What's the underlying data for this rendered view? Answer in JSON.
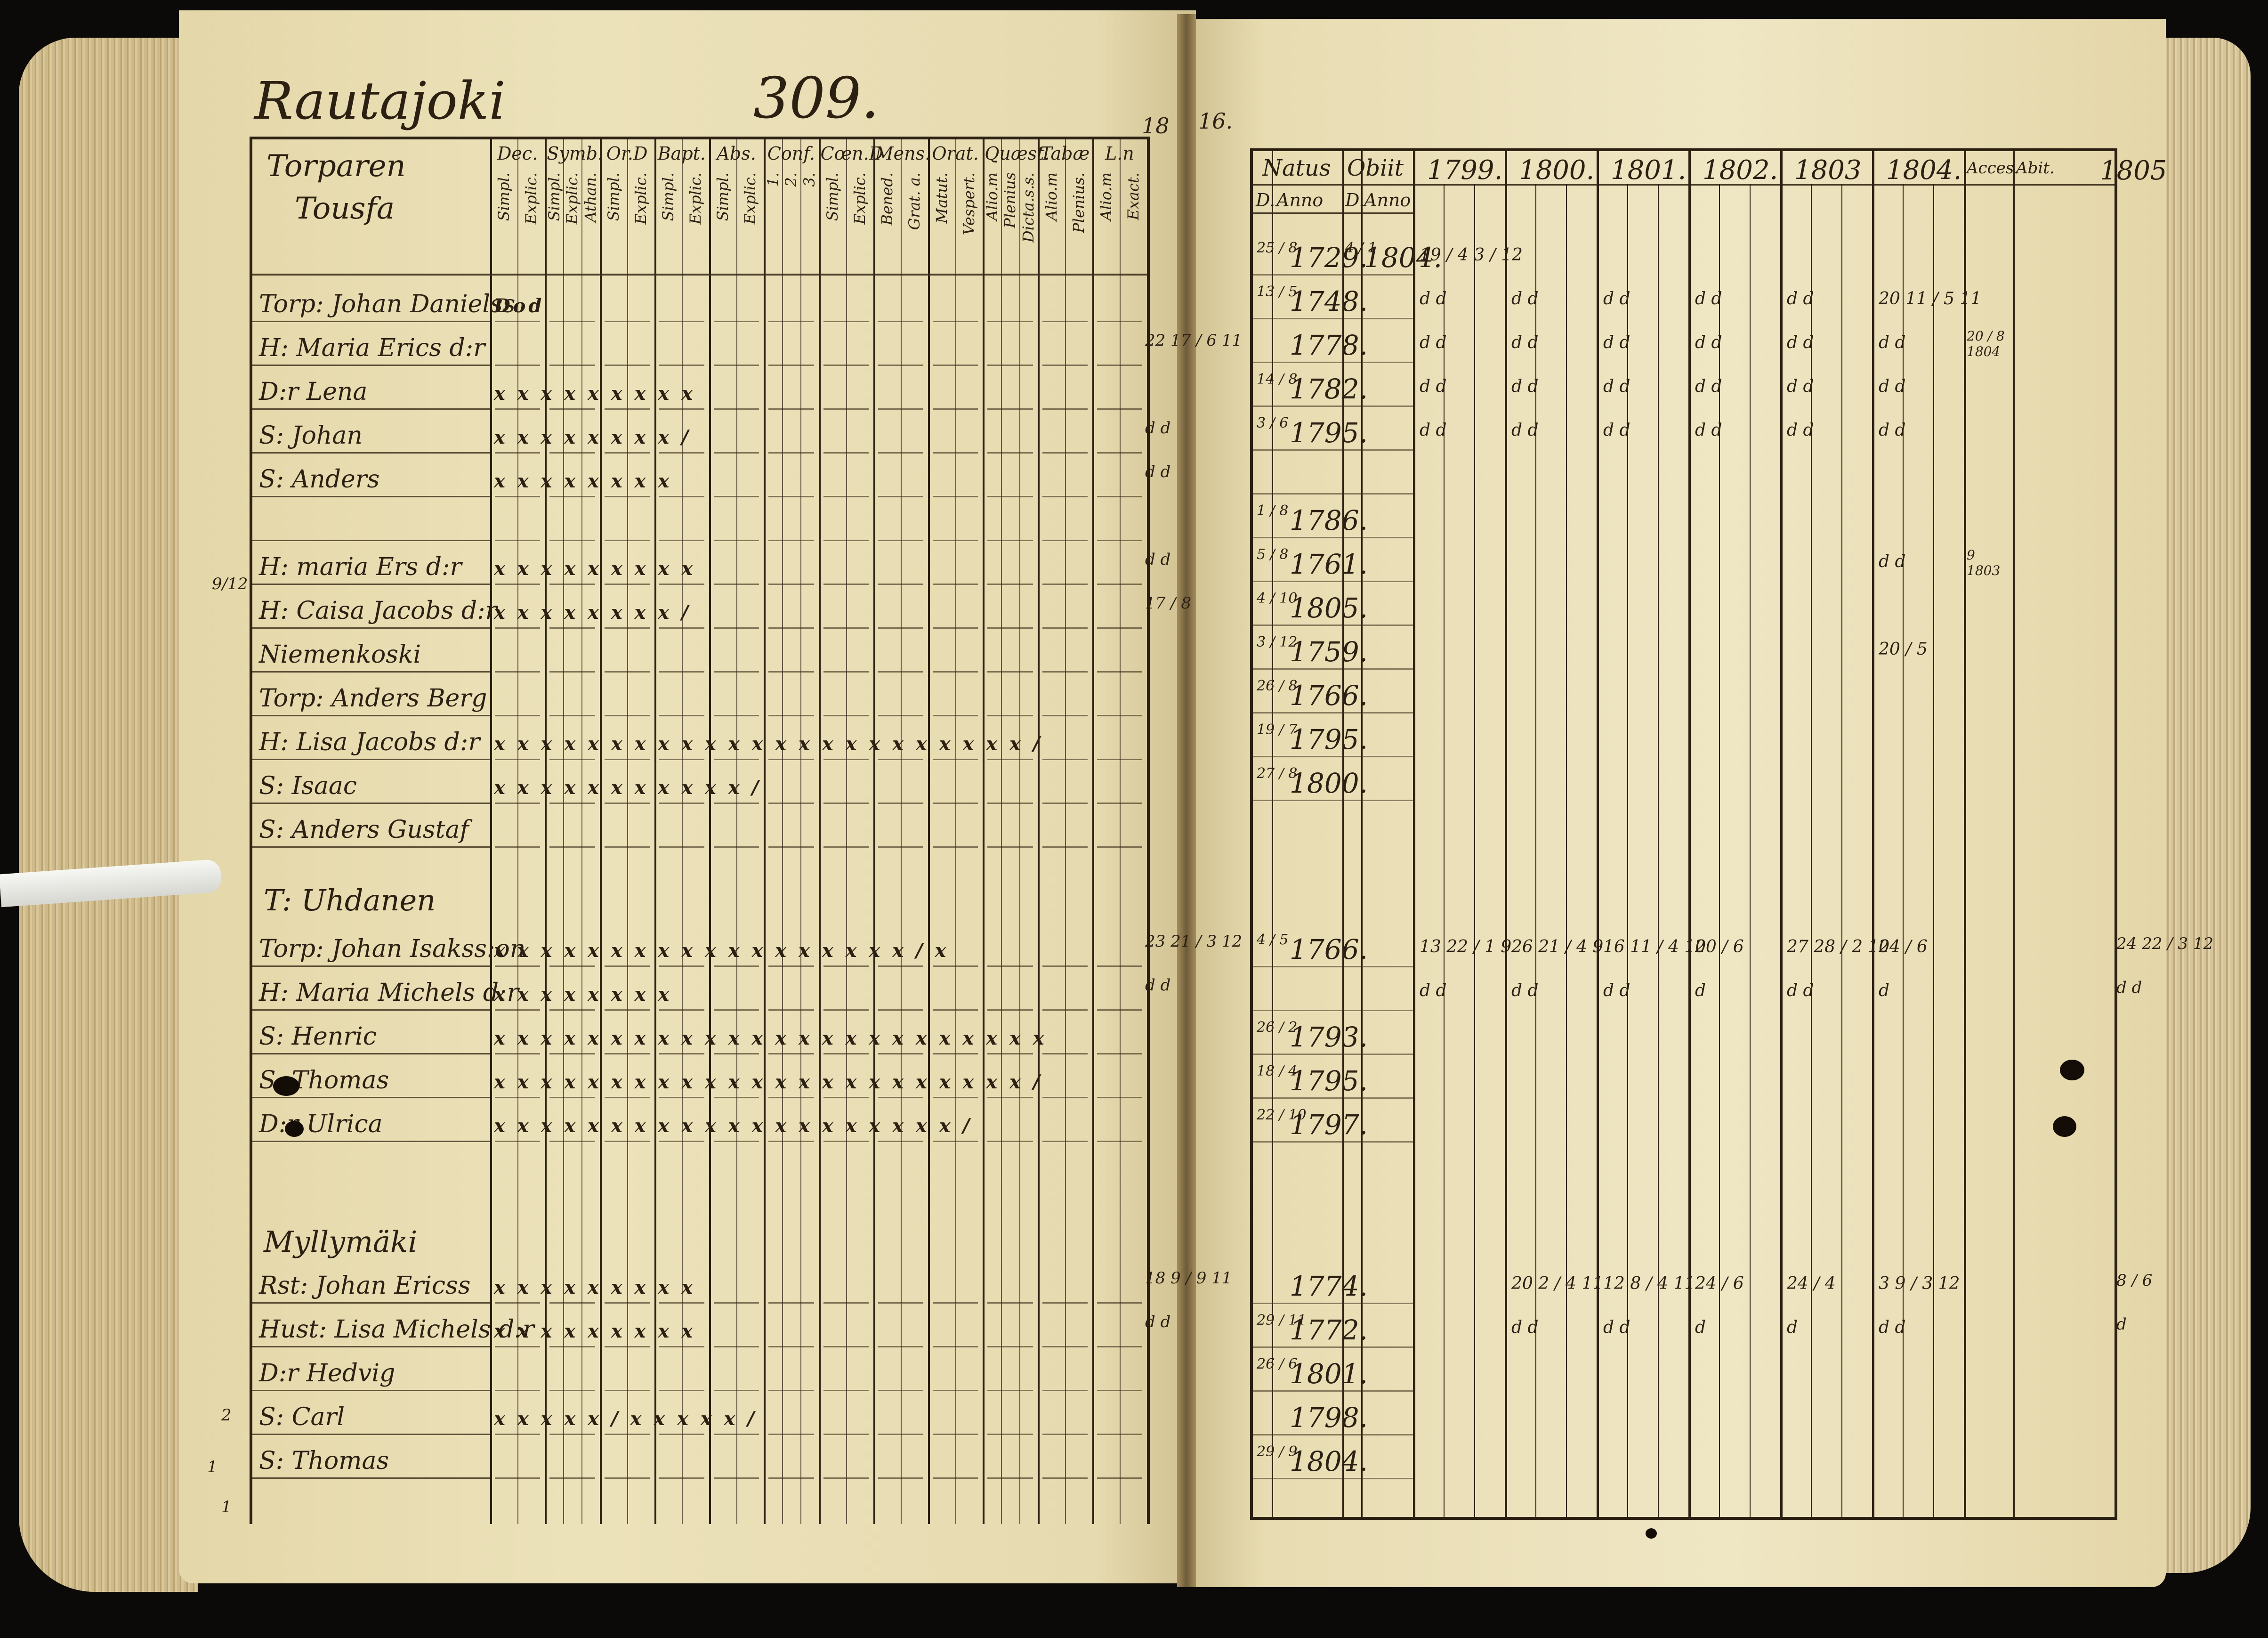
{
  "left_page": {
    "place_name": "Rautajoki",
    "page_number": "309.",
    "corner_mark": "18",
    "heading": [
      "Torparen",
      "Tousfa"
    ],
    "columns": [
      {
        "label": "Dec.",
        "subs": [
          "Simpl.",
          "Explic."
        ]
      },
      {
        "label": "Symb.",
        "subs": [
          "Simpl.",
          "Explic.",
          "Athan."
        ]
      },
      {
        "label": "Or.D",
        "subs": [
          "Simpl.",
          "Explic."
        ]
      },
      {
        "label": "Bapt.",
        "subs": [
          "Simpl.",
          "Explic."
        ]
      },
      {
        "label": "Abs.",
        "subs": [
          "Simpl.",
          "Explic."
        ]
      },
      {
        "label": "Conf.",
        "subs": [
          "1.",
          "2.",
          "3."
        ]
      },
      {
        "label": "Cœn.D",
        "subs": [
          "Simpl.",
          "Explic."
        ]
      },
      {
        "label": "Mens.",
        "subs": [
          "Bened.",
          "Grat. a."
        ]
      },
      {
        "label": "Orat.",
        "subs": [
          "Matut.",
          "Vespert."
        ]
      },
      {
        "label": "Quæst.",
        "subs": [
          "Alio.m",
          "Plenius",
          "Dicta.s.s."
        ]
      },
      {
        "label": "Tabæ",
        "subs": [
          "Alio.m",
          "Plenius."
        ]
      },
      {
        "label": "L.n",
        "subs": [
          "Alio.m",
          "Exact."
        ]
      }
    ],
    "rows": [
      {
        "name": "Torp: Johan Danielss",
        "marks": "Dod",
        "note": ""
      },
      {
        "name": "H: Maria Erics d:r",
        "marks": "",
        "note": "22 17 / 6 11"
      },
      {
        "name": "D:r Lena",
        "marks": "x x x          x x   x x  x x",
        "note": ""
      },
      {
        "name": "S: Johan",
        "marks": "x x x          x x   x x  x /",
        "note": "d d"
      },
      {
        "name": "S: Anders",
        "marks": "x x x          x x   x x  x",
        "note": "d d"
      },
      {
        "name": "",
        "marks": "",
        "note": ""
      },
      {
        "name": "H: maria Ers d:r",
        "marks": "x x x          x x   x x  x x",
        "note": "d d"
      },
      {
        "name": "H: Caisa Jacobs d:r",
        "marks": "x x x          x x   x x  x /",
        "note": "17 / 8"
      },
      {
        "name": "Niemenkoski",
        "marks": "",
        "note": ""
      },
      {
        "name": "Torp: Anders Berg",
        "marks": "",
        "note": ""
      },
      {
        "name": "H: Lisa Jacobs d:r",
        "marks": "x x  x x x  x x  x x  x x  x x x  x x  x x  x x  x x  x /",
        "note": ""
      },
      {
        "name": "S: Isaac",
        "marks": "x  x  x  x  x  x  x  x x  x x  /",
        "note": ""
      },
      {
        "name": "S: Anders Gustaf",
        "marks": "",
        "note": ""
      }
    ],
    "section_2": {
      "title": "T: Uhdanen",
      "rows": [
        {
          "name": "Torp: Johan Isakss:on",
          "marks": "x x  x x x  x x  x x  x x x  x x  x x  x x  /   x",
          "note": "23 21 / 3 12"
        },
        {
          "name": "H: Maria Michels d:r",
          "marks": "x x x          x x   x x  x",
          "note": "d d"
        },
        {
          "name": "S: Henric",
          "marks": "x x  x x x  x x  x x  x x x  x x  x x  x x  x x  x x  x x",
          "note": ""
        },
        {
          "name": "S: Thomas",
          "marks": "x x  x x x  x x  x x  x x x  x x  x x  x x  x x  x x  x /",
          "note": ""
        },
        {
          "name": "D:r Ulrica",
          "marks": "x x  x x x  x x  x x  x x x  x x  x x  x x       x x  /",
          "note": ""
        }
      ]
    },
    "section_3": {
      "title": "Myllymäki",
      "rows": [
        {
          "name": "Rst: Johan Ericss",
          "marks": "x x x          x x   x x  x x",
          "note": "18 9 / 9 11"
        },
        {
          "name": "Hust: Lisa Michels d:r",
          "marks": "x x x          x x   x x  x x",
          "note": "d d"
        },
        {
          "name": "D:r Hedvig",
          "marks": "",
          "note": ""
        },
        {
          "name": "S: Carl",
          "marks": "x  x  x  x  x  /  x  x x  x x  /",
          "note": ""
        },
        {
          "name": "S: Thomas",
          "marks": "",
          "note": ""
        }
      ]
    },
    "margin_notes": [
      "9/12",
      "2",
      "1",
      "1"
    ]
  },
  "right_page": {
    "corner_mark": "16.",
    "headers": {
      "natus": "Natus",
      "obiit": "Obiit",
      "natus_sub": [
        "D.",
        "Anno"
      ],
      "obiit_sub": [
        "D.",
        "Anno"
      ],
      "years": [
        "1799.",
        "1800.",
        "1801.",
        "1802.",
        "1803",
        "1804."
      ],
      "acces": "Acces.",
      "abit": "Abit.",
      "overflow_year": "1805"
    },
    "rows": [
      {
        "day": "25 / 8",
        "year": "1729.",
        "obiit_day": "4 / 1",
        "obiit_year": "1804.",
        "entries": [
          "19 / 4   3 / 12",
          "",
          "",
          "",
          "",
          ""
        ]
      },
      {
        "day": "13 / 5",
        "year": "1748.",
        "entries": [
          "d d",
          "d d",
          "d d",
          "d d",
          "d d",
          "20 11 / 5 11"
        ]
      },
      {
        "day": "",
        "year": "1778.",
        "entries": [
          "d d",
          "d d",
          "d d",
          "d d",
          "d d",
          "d d"
        ],
        "acces": "20 / 8 1804"
      },
      {
        "day": "14 / 8",
        "year": "1782.",
        "entries": [
          "d d",
          "d d",
          "d d",
          "d d",
          "d d",
          "d d"
        ]
      },
      {
        "day": "3 / 6",
        "year": "1795.",
        "entries": [
          "d d",
          "d d",
          "d d",
          "d d",
          "d d",
          "d d"
        ]
      },
      {
        "day": "",
        "year": "",
        "entries": [
          "",
          "",
          "",
          "",
          "",
          ""
        ]
      },
      {
        "day": "1 / 8",
        "year": "1786.",
        "entries": [
          "",
          "",
          "",
          "",
          "",
          ""
        ]
      },
      {
        "day": "5 / 8",
        "year": "1761.",
        "entries": [
          "",
          "",
          "",
          "",
          "",
          "d d"
        ],
        "acces": "9 1803"
      },
      {
        "day": "4 / 10",
        "year": "1805.",
        "entries": [
          "",
          "",
          "",
          "",
          "",
          ""
        ]
      },
      {
        "day": "3 / 12",
        "year": "1759.",
        "entries": [
          "",
          "",
          "",
          "",
          "",
          "20 / 5"
        ]
      },
      {
        "day": "26 / 8",
        "year": "1766.",
        "entries": [
          "",
          "",
          "",
          "",
          "",
          ""
        ]
      },
      {
        "day": "19 / 7",
        "year": "1795.",
        "entries": [
          "",
          "",
          "",
          "",
          "",
          ""
        ]
      },
      {
        "day": "27 / 8",
        "year": "1800.",
        "entries": [
          "",
          "",
          "",
          "",
          "",
          ""
        ]
      }
    ],
    "section_2_rows": [
      {
        "day": "4 / 5",
        "year": "1766.",
        "entries": [
          "13 22 / 1 9",
          "26 21 / 4 9",
          "16 11 / 4 10",
          "20 / 6",
          "27 28 / 2 10",
          "24 / 6"
        ],
        "margin": "24 22 / 3 12"
      },
      {
        "day": "",
        "year": "",
        "entries": [
          "d d",
          "d d",
          "d d",
          "d",
          "d d",
          "d"
        ],
        "margin": "d d"
      },
      {
        "day": "26 / 2",
        "year": "1793.",
        "entries": [
          "",
          "",
          "",
          "",
          "",
          ""
        ]
      },
      {
        "day": "18 / 4",
        "year": "1795.",
        "entries": [
          "",
          "",
          "",
          "",
          "",
          ""
        ]
      },
      {
        "day": "22 / 10",
        "year": "1797.",
        "entries": [
          "",
          "",
          "",
          "",
          "",
          ""
        ]
      }
    ],
    "section_3_rows": [
      {
        "day": "",
        "year": "1774.",
        "entries": [
          "",
          "20 2 / 4 11",
          "12 8 / 4 11",
          "24 / 6",
          "24 / 4",
          "3 9 / 3 12"
        ],
        "margin": "8 / 6"
      },
      {
        "day": "29 / 11",
        "year": "1772.",
        "entries": [
          "",
          "d d",
          "d d",
          "d",
          "d",
          "d d"
        ],
        "margin": "d"
      },
      {
        "day": "26 / 6",
        "year": "1801.",
        "entries": [
          "",
          "",
          "",
          "",
          "",
          ""
        ]
      },
      {
        "day": "",
        "year": "1798.",
        "entries": [
          "",
          "",
          "",
          "",
          "",
          ""
        ]
      },
      {
        "day": "29 / 9",
        "year": "1804.",
        "entries": [
          "",
          "",
          "",
          "",
          "",
          ""
        ]
      }
    ]
  }
}
